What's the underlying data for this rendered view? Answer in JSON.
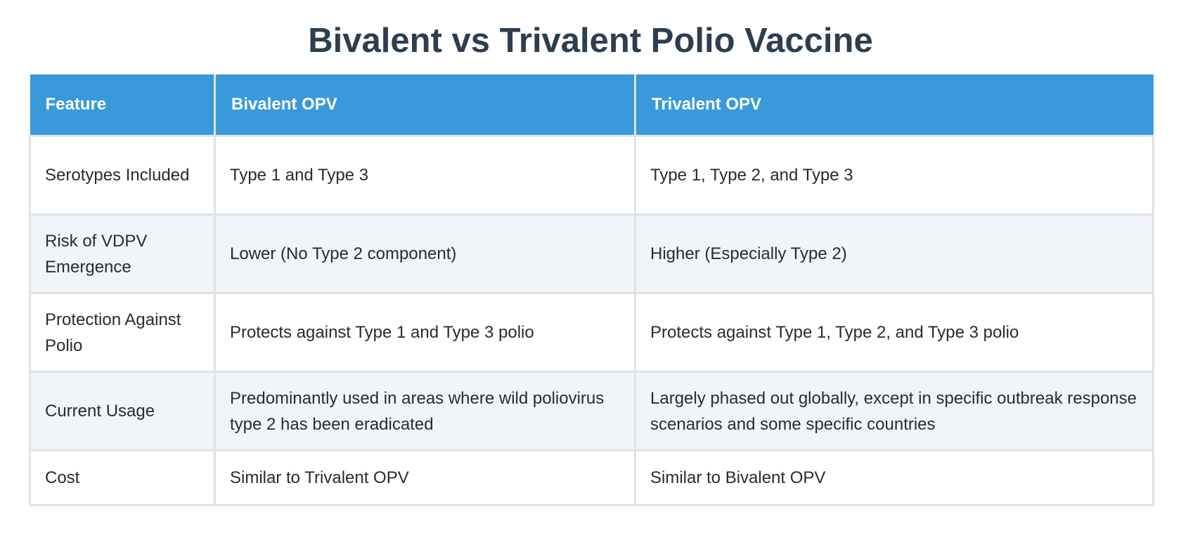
{
  "title": "Bivalent vs Trivalent Polio Vaccine",
  "table": {
    "headers": [
      "Feature",
      "Bivalent OPV",
      "Trivalent OPV"
    ],
    "rows": [
      {
        "feature": "Serotypes Included",
        "bivalent": "Type 1 and Type 3",
        "trivalent": "Type 1, Type 2, and Type 3"
      },
      {
        "feature": "Risk of VDPV Emergence",
        "bivalent": "Lower (No Type 2 component)",
        "trivalent": "Higher (Especially Type 2)"
      },
      {
        "feature": "Protection Against Polio",
        "bivalent": "Protects against Type 1 and Type 3 polio",
        "trivalent": "Protects against Type 1, Type 2, and Type 3 polio"
      },
      {
        "feature": "Current Usage",
        "bivalent": "Predominantly used in areas where wild poliovirus type 2 has been eradicated",
        "trivalent": "Largely phased out globally, except in specific outbreak response scenarios and some specific countries"
      },
      {
        "feature": "Cost",
        "bivalent": "Similar to Trivalent OPV",
        "trivalent": "Similar to Bivalent OPV"
      }
    ]
  },
  "colors": {
    "title": "#2c3e50",
    "header_bg": "#3a99db",
    "header_text": "#ffffff",
    "row_alt_bg": "#f1f4f8",
    "border": "#dfe3e6"
  }
}
